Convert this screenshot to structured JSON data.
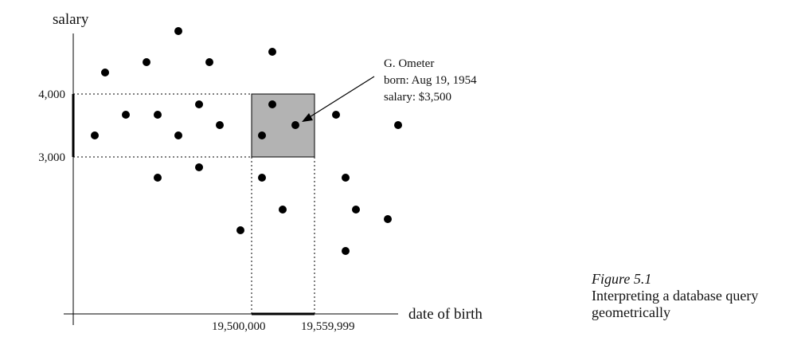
{
  "labels": {
    "y_axis": "salary",
    "x_axis": "date of birth",
    "y_tick_high": "4,000",
    "y_tick_low": "3,000",
    "x_tick_low": "19,500,000",
    "x_tick_high": "19,559,999"
  },
  "annotation": {
    "line1": "G. Ometer",
    "line2": "born: Aug 19, 1954",
    "line3": "salary: $3,500"
  },
  "caption": {
    "number": "Figure 5.1",
    "title_line1": "Interpreting a database query",
    "title_line2": "geometrically"
  },
  "colors": {
    "query_box_fill": "#b3b3b3",
    "points": "#000000",
    "axes": "#000000"
  }
}
